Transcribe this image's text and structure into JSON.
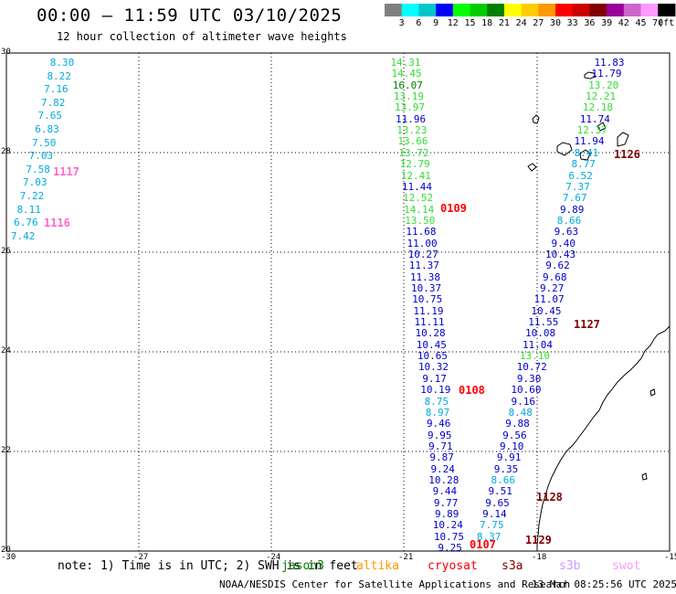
{
  "title": "00:00 – 11:59 UTC 03/10/2025",
  "subtitle": "12 hour collection of altimeter wave heights",
  "colorbar": {
    "labels": [
      "3",
      "6",
      "9",
      "12",
      "15",
      "18",
      "21",
      "24",
      "27",
      "30",
      "33",
      "36",
      "39",
      "42",
      "45",
      "70",
      "(ft)"
    ],
    "colors": [
      "#808080",
      "#00ffff",
      "#00c8c8",
      "#0000ff",
      "#00ff00",
      "#00cc00",
      "#008000",
      "#ffff00",
      "#ffcc00",
      "#ff9900",
      "#ff0000",
      "#cc0000",
      "#800000",
      "#990099",
      "#cc66cc",
      "#ff99ff",
      "#000000"
    ]
  },
  "axes": {
    "y_ticks": [
      "30",
      "28",
      "26",
      "24",
      "22",
      "20"
    ],
    "x_ticks": [
      "-30",
      "-27",
      "-24",
      "-21",
      "-18",
      "-15"
    ]
  },
  "track_labels": [
    {
      "text": "1117",
      "color": "#ff66cc"
    },
    {
      "text": "1116",
      "color": "#ff66cc"
    },
    {
      "text": "0109",
      "color": "#ff0000"
    },
    {
      "text": "1126",
      "color": "#800000"
    },
    {
      "text": "1127",
      "color": "#800000"
    },
    {
      "text": "0108",
      "color": "#ff0000"
    },
    {
      "text": "1128",
      "color": "#800000"
    },
    {
      "text": "0107",
      "color": "#ff0000"
    },
    {
      "text": "1129",
      "color": "#800000"
    }
  ],
  "wave_heights": {
    "col_a": [
      {
        "v": "8.30",
        "c": "#00aadd"
      },
      {
        "v": "8.22",
        "c": "#00aadd"
      },
      {
        "v": "7.16",
        "c": "#00aadd"
      },
      {
        "v": "7.82",
        "c": "#00aadd"
      },
      {
        "v": "7.65",
        "c": "#00aadd"
      },
      {
        "v": "6.83",
        "c": "#00aadd"
      },
      {
        "v": "7.50",
        "c": "#00aadd"
      },
      {
        "v": "7.03",
        "c": "#00aadd"
      },
      {
        "v": "7.58",
        "c": "#00aadd"
      },
      {
        "v": "7.03",
        "c": "#00aadd"
      },
      {
        "v": "7.22",
        "c": "#00aadd"
      },
      {
        "v": "8.11",
        "c": "#00aadd"
      },
      {
        "v": "6.76",
        "c": "#00aadd"
      },
      {
        "v": "7.42",
        "c": "#00aadd"
      }
    ],
    "col_b": [
      {
        "v": "14.31",
        "c": "#33dd33"
      },
      {
        "v": "14.45",
        "c": "#33dd33"
      },
      {
        "v": "16.07",
        "c": "#008000"
      },
      {
        "v": "13.19",
        "c": "#33dd33"
      },
      {
        "v": "13.97",
        "c": "#33dd33"
      },
      {
        "v": "11.96",
        "c": "#0000cc"
      },
      {
        "v": "13.23",
        "c": "#33dd33"
      },
      {
        "v": "13.66",
        "c": "#33dd33"
      },
      {
        "v": "13.72",
        "c": "#33dd33"
      },
      {
        "v": "12.79",
        "c": "#33dd33"
      },
      {
        "v": "12.41",
        "c": "#33dd33"
      },
      {
        "v": "11.44",
        "c": "#0000cc"
      },
      {
        "v": "12.52",
        "c": "#33dd33"
      },
      {
        "v": "14.14",
        "c": "#33dd33"
      },
      {
        "v": "13.50",
        "c": "#33dd33"
      },
      {
        "v": "11.68",
        "c": "#0000cc"
      },
      {
        "v": "11.00",
        "c": "#0000cc"
      },
      {
        "v": "10.27",
        "c": "#0000cc"
      },
      {
        "v": "11.37",
        "c": "#0000cc"
      },
      {
        "v": "11.38",
        "c": "#0000cc"
      },
      {
        "v": "10.37",
        "c": "#0000cc"
      },
      {
        "v": "10.75",
        "c": "#0000cc"
      },
      {
        "v": "11.19",
        "c": "#0000cc"
      },
      {
        "v": "11.11",
        "c": "#0000cc"
      },
      {
        "v": "10.28",
        "c": "#0000cc"
      },
      {
        "v": "10.45",
        "c": "#0000cc"
      },
      {
        "v": "10.65",
        "c": "#0000cc"
      },
      {
        "v": "10.32",
        "c": "#0000cc"
      },
      {
        "v": "9.17",
        "c": "#0000cc"
      },
      {
        "v": "10.19",
        "c": "#0000cc"
      },
      {
        "v": "8.75",
        "c": "#00aadd"
      },
      {
        "v": "8.97",
        "c": "#00aadd"
      },
      {
        "v": "9.46",
        "c": "#0000cc"
      },
      {
        "v": "9.95",
        "c": "#0000cc"
      },
      {
        "v": "9.71",
        "c": "#0000cc"
      },
      {
        "v": "9.87",
        "c": "#0000cc"
      },
      {
        "v": "9.24",
        "c": "#0000cc"
      },
      {
        "v": "10.28",
        "c": "#0000cc"
      },
      {
        "v": "9.44",
        "c": "#0000cc"
      },
      {
        "v": "9.77",
        "c": "#0000cc"
      },
      {
        "v": "9.89",
        "c": "#0000cc"
      },
      {
        "v": "10.24",
        "c": "#0000cc"
      },
      {
        "v": "10.75",
        "c": "#0000cc"
      },
      {
        "v": "9.25",
        "c": "#0000cc"
      }
    ],
    "col_c": [
      {
        "v": "11.83",
        "c": "#0000cc"
      },
      {
        "v": "11.79",
        "c": "#0000cc"
      },
      {
        "v": "13.20",
        "c": "#33dd33"
      },
      {
        "v": "12.21",
        "c": "#33dd33"
      },
      {
        "v": "12.18",
        "c": "#33dd33"
      },
      {
        "v": "11.74",
        "c": "#0000cc"
      },
      {
        "v": "12.37",
        "c": "#33dd33"
      },
      {
        "v": "11.94",
        "c": "#0000cc"
      },
      {
        "v": "8.41",
        "c": "#00aadd"
      },
      {
        "v": "8.77",
        "c": "#00aadd"
      },
      {
        "v": "6.52",
        "c": "#00aadd"
      },
      {
        "v": "7.37",
        "c": "#00aadd"
      },
      {
        "v": "7.67",
        "c": "#00aadd"
      },
      {
        "v": "9.89",
        "c": "#0000cc"
      },
      {
        "v": "8.66",
        "c": "#00aadd"
      },
      {
        "v": "9.63",
        "c": "#0000cc"
      },
      {
        "v": "9.40",
        "c": "#0000cc"
      },
      {
        "v": "10.43",
        "c": "#0000cc"
      },
      {
        "v": "9.62",
        "c": "#0000cc"
      },
      {
        "v": "9.68",
        "c": "#0000cc"
      },
      {
        "v": "9.27",
        "c": "#0000cc"
      },
      {
        "v": "11.07",
        "c": "#0000cc"
      },
      {
        "v": "10.45",
        "c": "#0000cc"
      },
      {
        "v": "11.55",
        "c": "#0000cc"
      },
      {
        "v": "10.08",
        "c": "#0000cc"
      },
      {
        "v": "11.04",
        "c": "#0000cc"
      },
      {
        "v": "13.10",
        "c": "#33dd33"
      },
      {
        "v": "10.72",
        "c": "#0000cc"
      },
      {
        "v": "9.30",
        "c": "#0000cc"
      },
      {
        "v": "10.60",
        "c": "#0000cc"
      },
      {
        "v": "9.16",
        "c": "#0000cc"
      },
      {
        "v": "8.48",
        "c": "#00aadd"
      },
      {
        "v": "9.88",
        "c": "#0000cc"
      },
      {
        "v": "9.56",
        "c": "#0000cc"
      },
      {
        "v": "9.10",
        "c": "#0000cc"
      },
      {
        "v": "9.91",
        "c": "#0000cc"
      },
      {
        "v": "9.35",
        "c": "#0000cc"
      },
      {
        "v": "8.66",
        "c": "#00aadd"
      },
      {
        "v": "9.51",
        "c": "#0000cc"
      },
      {
        "v": "9.65",
        "c": "#0000cc"
      },
      {
        "v": "9.14",
        "c": "#0000cc"
      },
      {
        "v": "7.75",
        "c": "#00aadd"
      },
      {
        "v": "8.37",
        "c": "#00aadd"
      }
    ]
  },
  "note": "note: 1) Time is in UTC; 2) SWH is in feet",
  "satellites": [
    {
      "name": "jason3",
      "color": "#008000"
    },
    {
      "name": "altika",
      "color": "#ff9900"
    },
    {
      "name": "cryosat",
      "color": "#ff0000"
    },
    {
      "name": "s3a",
      "color": "#800000"
    },
    {
      "name": "s3b",
      "color": "#cc99ff"
    },
    {
      "name": "swot",
      "color": "#ff99ff"
    }
  ],
  "credit": "NOAA/NESDIS Center for Satellite Applications and Research",
  "timestamp": "13 Mar 08:25:56 UTC 2025"
}
